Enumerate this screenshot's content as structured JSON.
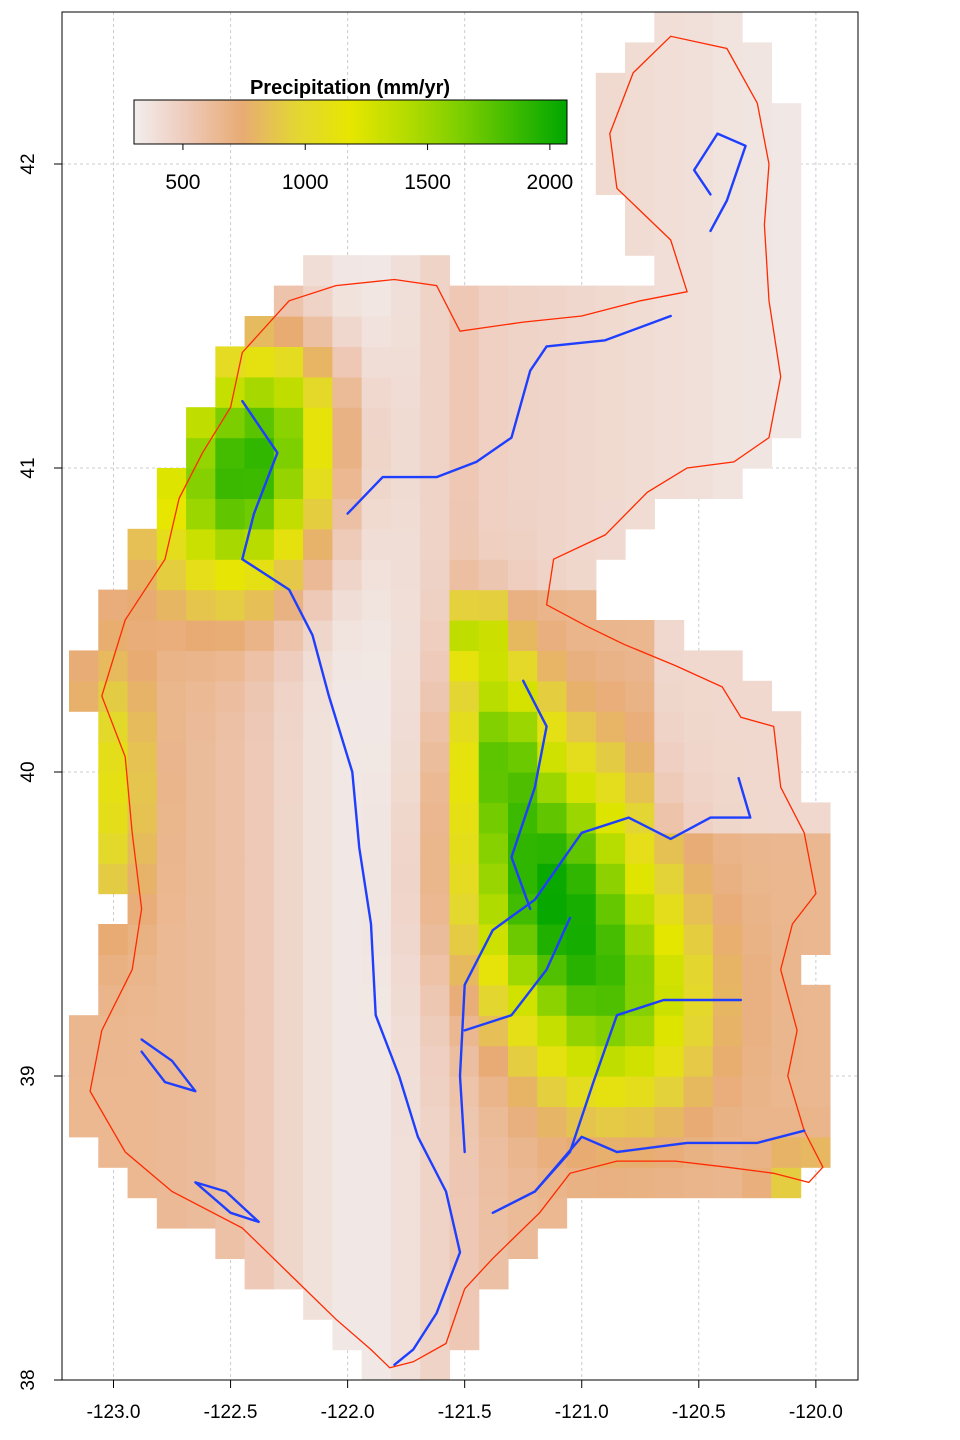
{
  "legend": {
    "title": "Precipitation (mm/yr)",
    "range": [
      300,
      2070
    ],
    "ticks": [
      500,
      1000,
      1500,
      2000
    ],
    "tick_labels": [
      "500",
      "1000",
      "1500",
      "2000"
    ],
    "color_stops": [
      "#f2eeee",
      "#eec9b8",
      "#e8ab74",
      "#e3d633",
      "#e6e600",
      "#b6dc00",
      "#7fcf00",
      "#3fbb00",
      "#00a600"
    ]
  },
  "axes": {
    "x": {
      "range": [
        -123.22,
        -119.82
      ],
      "ticks": [
        -123.0,
        -122.5,
        -122.0,
        -121.5,
        -121.0,
        -120.5,
        -120.0
      ],
      "tick_labels": [
        "-123.0",
        "-122.5",
        "-122.0",
        "-121.5",
        "-121.0",
        "-120.5",
        "-120.0"
      ]
    },
    "y": {
      "range": [
        38.0,
        42.5
      ],
      "ticks": [
        38,
        39,
        40,
        41,
        42
      ],
      "tick_labels": [
        "38",
        "39",
        "40",
        "41",
        "42"
      ]
    },
    "grid": true
  },
  "colors": {
    "boundary": "#ff2a00",
    "rivers": "#1f3fff",
    "grid": "#cccccc"
  }
}
